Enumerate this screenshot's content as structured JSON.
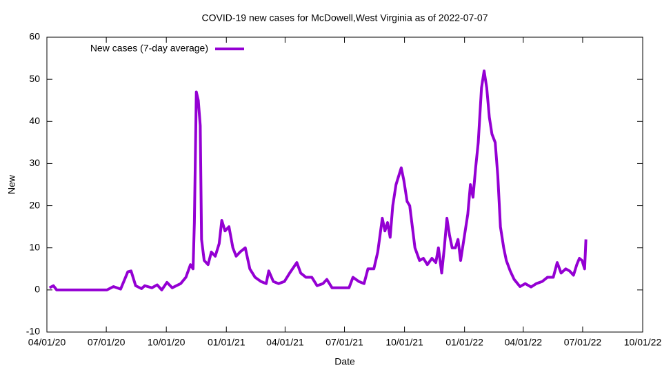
{
  "chart_data": {
    "type": "line",
    "title": "COVID-19 new cases for McDowell,West Virginia as of 2022-07-07",
    "x_label": "Date",
    "y_label": "New",
    "legend_position": "top-left",
    "grid": false,
    "xlim": [
      "2020-04-01",
      "2022-10-01"
    ],
    "xticks": [
      {
        "value": "2020-04-01",
        "label": "04/01/20"
      },
      {
        "value": "2020-07-01",
        "label": "07/01/20"
      },
      {
        "value": "2020-10-01",
        "label": "10/01/20"
      },
      {
        "value": "2021-01-01",
        "label": "01/01/21"
      },
      {
        "value": "2021-04-01",
        "label": "04/01/21"
      },
      {
        "value": "2021-07-01",
        "label": "07/01/21"
      },
      {
        "value": "2021-10-01",
        "label": "10/01/21"
      },
      {
        "value": "2022-01-01",
        "label": "01/01/22"
      },
      {
        "value": "2022-04-01",
        "label": "04/01/22"
      },
      {
        "value": "2022-07-01",
        "label": "07/01/22"
      },
      {
        "value": "2022-10-01",
        "label": "10/01/22"
      }
    ],
    "ylim": [
      -10,
      60
    ],
    "yticks": [
      -10,
      0,
      10,
      20,
      30,
      40,
      50,
      60
    ],
    "x": [
      "2020-04-05",
      "2020-04-11",
      "2020-04-16",
      "2020-07-02",
      "2020-07-12",
      "2020-07-23",
      "2020-08-03",
      "2020-08-08",
      "2020-08-15",
      "2020-08-24",
      "2020-08-29",
      "2020-09-09",
      "2020-09-17",
      "2020-09-24",
      "2020-10-02",
      "2020-10-10",
      "2020-10-23",
      "2020-10-31",
      "2020-11-07",
      "2020-11-11",
      "2020-11-13",
      "2020-11-16",
      "2020-11-19",
      "2020-11-22",
      "2020-11-24",
      "2020-11-28",
      "2020-12-04",
      "2020-12-09",
      "2020-12-15",
      "2020-12-21",
      "2020-12-25",
      "2020-12-30",
      "2021-01-05",
      "2021-01-11",
      "2021-01-16",
      "2021-01-22",
      "2021-01-30",
      "2021-02-06",
      "2021-02-14",
      "2021-02-23",
      "2021-03-03",
      "2021-03-07",
      "2021-03-14",
      "2021-03-22",
      "2021-03-31",
      "2021-04-08",
      "2021-04-19",
      "2021-04-25",
      "2021-05-03",
      "2021-05-12",
      "2021-05-20",
      "2021-05-29",
      "2021-06-04",
      "2021-06-12",
      "2021-06-23",
      "2021-07-08",
      "2021-07-14",
      "2021-07-23",
      "2021-07-31",
      "2021-08-06",
      "2021-08-15",
      "2021-08-21",
      "2021-08-28",
      "2021-09-01",
      "2021-09-05",
      "2021-09-09",
      "2021-09-13",
      "2021-09-18",
      "2021-09-22",
      "2021-09-26",
      "2021-09-30",
      "2021-10-05",
      "2021-10-09",
      "2021-10-13",
      "2021-10-17",
      "2021-10-24",
      "2021-10-30",
      "2021-11-05",
      "2021-11-12",
      "2021-11-18",
      "2021-11-22",
      "2021-11-27",
      "2021-12-01",
      "2021-12-05",
      "2021-12-09",
      "2021-12-13",
      "2021-12-18",
      "2021-12-22",
      "2021-12-26",
      "2021-12-30",
      "2022-01-06",
      "2022-01-10",
      "2022-01-14",
      "2022-01-18",
      "2022-01-22",
      "2022-01-27",
      "2022-01-31",
      "2022-02-04",
      "2022-02-08",
      "2022-02-12",
      "2022-02-17",
      "2022-02-21",
      "2022-02-25",
      "2022-03-02",
      "2022-03-06",
      "2022-03-12",
      "2022-03-18",
      "2022-03-27",
      "2022-04-04",
      "2022-04-13",
      "2022-04-21",
      "2022-04-30",
      "2022-05-08",
      "2022-05-17",
      "2022-05-23",
      "2022-05-29",
      "2022-06-05",
      "2022-06-11",
      "2022-06-17",
      "2022-06-22",
      "2022-06-26",
      "2022-06-30",
      "2022-07-04",
      "2022-07-06"
    ],
    "series": [
      {
        "name": "New cases (7-day average)",
        "color": "#9400d3",
        "values": [
          0.5,
          1,
          0,
          0,
          0.8,
          0.2,
          4.3,
          4.5,
          1,
          0.3,
          1,
          0.5,
          1.2,
          0,
          1.8,
          0.5,
          1.5,
          3,
          6,
          5,
          16,
          47,
          45,
          39,
          12,
          7,
          6,
          9,
          8,
          11,
          16.5,
          14,
          15,
          10,
          8,
          9,
          10,
          5,
          3,
          2,
          1.5,
          4.5,
          2,
          1.5,
          2,
          4,
          6.5,
          4,
          3,
          3,
          1,
          1.5,
          2.5,
          0.5,
          0.5,
          0.5,
          3,
          2,
          1.5,
          5,
          5,
          9,
          17,
          14,
          16,
          12.5,
          20,
          25,
          27,
          29,
          26,
          21,
          20,
          15,
          10,
          7,
          7.5,
          6,
          7.5,
          6.5,
          10,
          4,
          10,
          17,
          13,
          10,
          10,
          12,
          7,
          11,
          18,
          25,
          22,
          29,
          35,
          48,
          52,
          48,
          41,
          37,
          35,
          27,
          15,
          10,
          7,
          4.5,
          2.5,
          0.8,
          1.5,
          0.7,
          1.5,
          2,
          3,
          3,
          6.5,
          4,
          5,
          4.5,
          3.5,
          6,
          7.5,
          7,
          5,
          12
        ]
      }
    ]
  }
}
